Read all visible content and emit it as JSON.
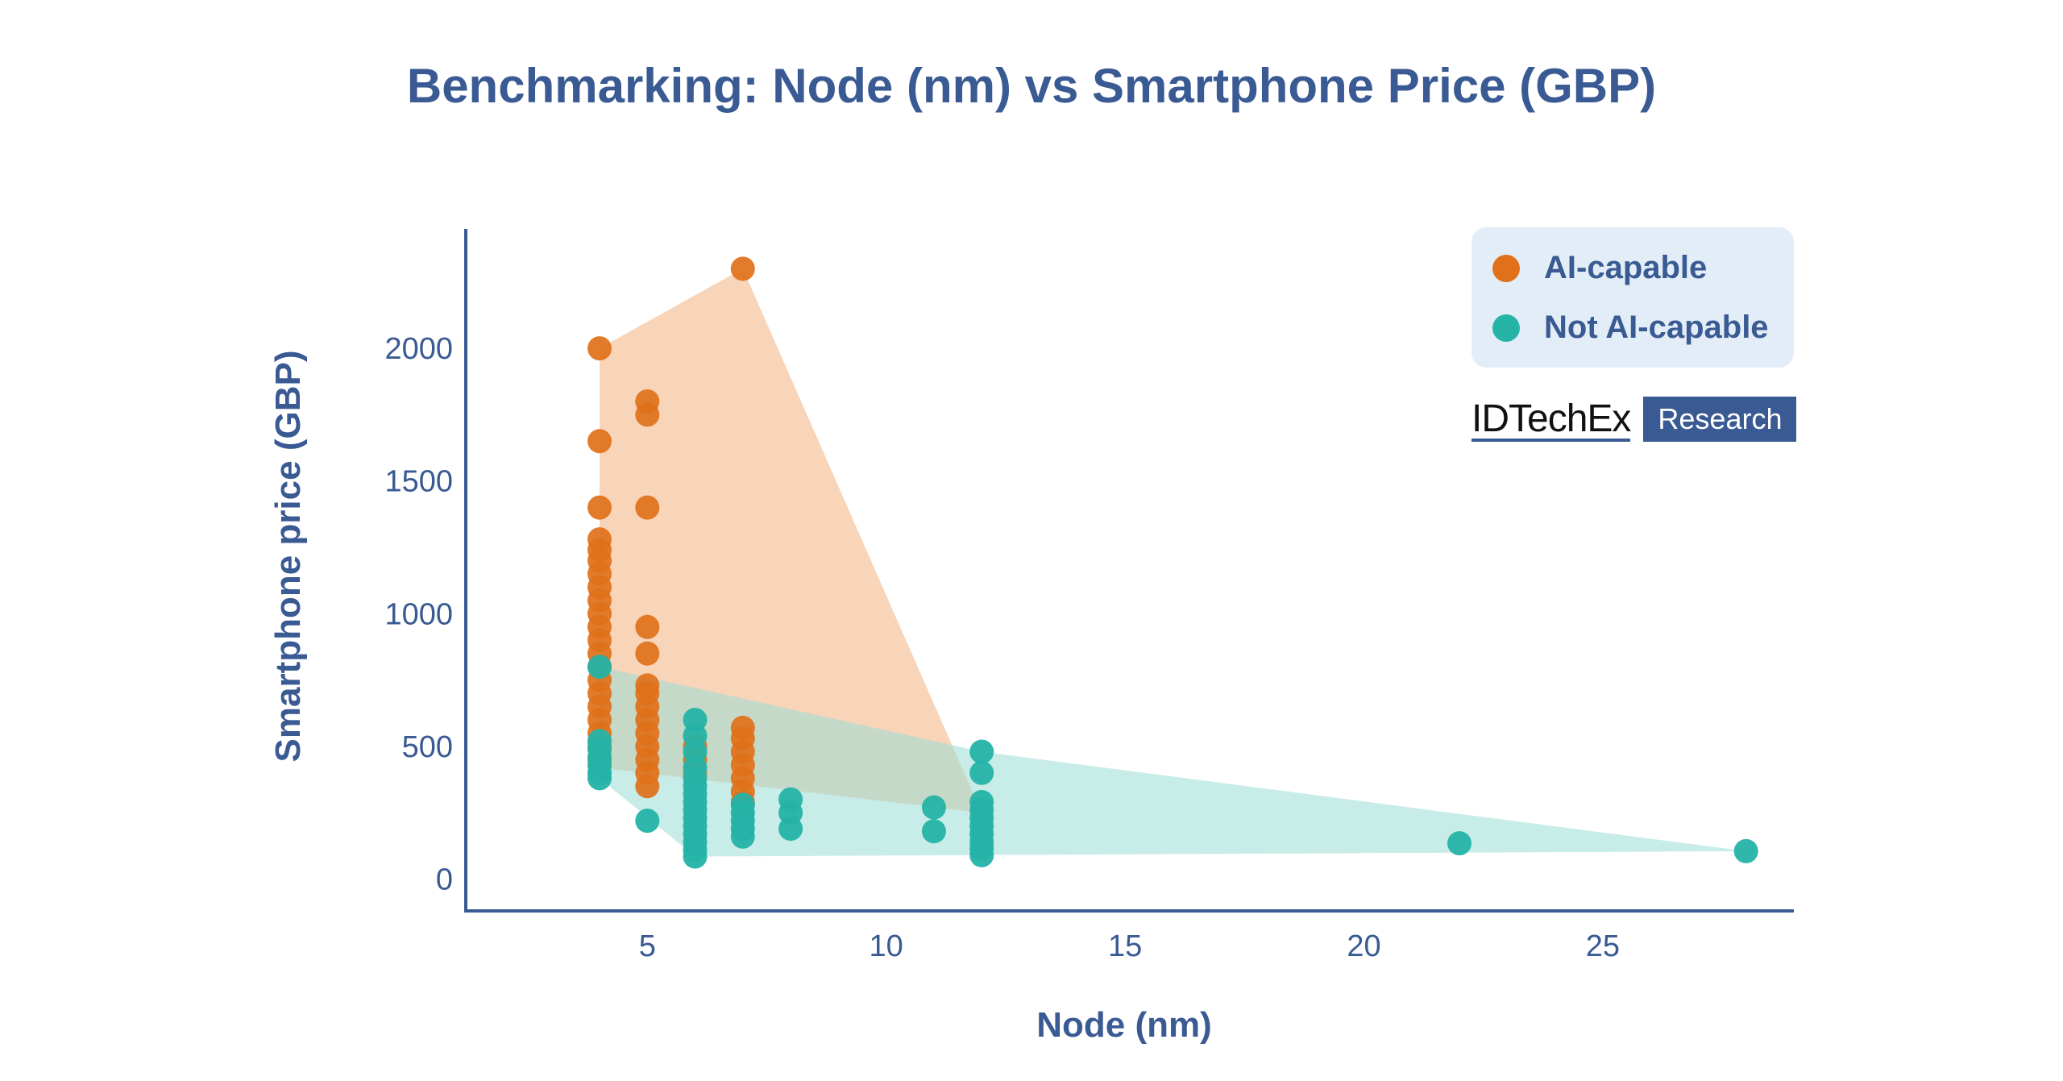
{
  "colors": {
    "ai": "#e0711a",
    "ai_fill": "#f5c6a2",
    "not_ai": "#25b3a7",
    "not_ai_fill": "#9adcd6",
    "text": "#3a5a93",
    "axis": "#3a5a93",
    "legend_bg": "#e3edf7"
  },
  "brand": {
    "name": "IDTechEx",
    "tag": "Research"
  },
  "chart_data": {
    "type": "scatter",
    "title": "Benchmarking: Node (nm) vs Smartphone Price (GBP)",
    "xlabel": "Node (nm)",
    "ylabel": "Smartphone price (GBP)",
    "xlim": [
      1.2,
      29
    ],
    "ylim": [
      -120,
      2450
    ],
    "xticks": [
      5,
      10,
      15,
      20,
      25
    ],
    "yticks": [
      0,
      500,
      1000,
      1500,
      2000
    ],
    "grid": false,
    "legend_position": "top-right",
    "series": [
      {
        "name": "AI-capable",
        "color": "#e0711a",
        "hull": [
          [
            4,
            2000
          ],
          [
            7,
            2300
          ],
          [
            12,
            250
          ],
          [
            4,
            420
          ]
        ],
        "points": [
          [
            4,
            2000
          ],
          [
            4,
            1650
          ],
          [
            4,
            1400
          ],
          [
            4,
            1280
          ],
          [
            4,
            1240
          ],
          [
            4,
            1200
          ],
          [
            4,
            1150
          ],
          [
            4,
            1100
          ],
          [
            4,
            1050
          ],
          [
            4,
            1000
          ],
          [
            4,
            950
          ],
          [
            4,
            900
          ],
          [
            4,
            850
          ],
          [
            4,
            800
          ],
          [
            4,
            750
          ],
          [
            4,
            700
          ],
          [
            4,
            650
          ],
          [
            4,
            600
          ],
          [
            4,
            550
          ],
          [
            4,
            500
          ],
          [
            4,
            450
          ],
          [
            5,
            1800
          ],
          [
            5,
            1750
          ],
          [
            5,
            1400
          ],
          [
            5,
            950
          ],
          [
            5,
            850
          ],
          [
            5,
            730
          ],
          [
            5,
            700
          ],
          [
            5,
            650
          ],
          [
            5,
            600
          ],
          [
            5,
            550
          ],
          [
            5,
            500
          ],
          [
            5,
            450
          ],
          [
            5,
            400
          ],
          [
            5,
            350
          ],
          [
            6,
            500
          ],
          [
            6,
            450
          ],
          [
            6,
            400
          ],
          [
            7,
            2300
          ],
          [
            7,
            570
          ],
          [
            7,
            530
          ],
          [
            7,
            480
          ],
          [
            7,
            430
          ],
          [
            7,
            380
          ],
          [
            7,
            330
          ],
          [
            7,
            290
          ]
        ]
      },
      {
        "name": "Not AI-capable",
        "color": "#25b3a7",
        "hull": [
          [
            4,
            800
          ],
          [
            12,
            480
          ],
          [
            28,
            105
          ],
          [
            6,
            85
          ],
          [
            4,
            380
          ]
        ],
        "points": [
          [
            4,
            800
          ],
          [
            4,
            520
          ],
          [
            4,
            490
          ],
          [
            4,
            460
          ],
          [
            4,
            430
          ],
          [
            4,
            400
          ],
          [
            4,
            380
          ],
          [
            5,
            220
          ],
          [
            6,
            600
          ],
          [
            6,
            540
          ],
          [
            6,
            480
          ],
          [
            6,
            420
          ],
          [
            6,
            380
          ],
          [
            6,
            350
          ],
          [
            6,
            320
          ],
          [
            6,
            290
          ],
          [
            6,
            260
          ],
          [
            6,
            230
          ],
          [
            6,
            200
          ],
          [
            6,
            170
          ],
          [
            6,
            140
          ],
          [
            6,
            110
          ],
          [
            6,
            85
          ],
          [
            7,
            280
          ],
          [
            7,
            250
          ],
          [
            7,
            220
          ],
          [
            7,
            190
          ],
          [
            7,
            160
          ],
          [
            8,
            300
          ],
          [
            8,
            250
          ],
          [
            8,
            190
          ],
          [
            11,
            270
          ],
          [
            11,
            180
          ],
          [
            12,
            480
          ],
          [
            12,
            400
          ],
          [
            12,
            290
          ],
          [
            12,
            260
          ],
          [
            12,
            230
          ],
          [
            12,
            200
          ],
          [
            12,
            170
          ],
          [
            12,
            140
          ],
          [
            12,
            115
          ],
          [
            12,
            90
          ],
          [
            22,
            135
          ],
          [
            28,
            105
          ]
        ]
      }
    ]
  }
}
